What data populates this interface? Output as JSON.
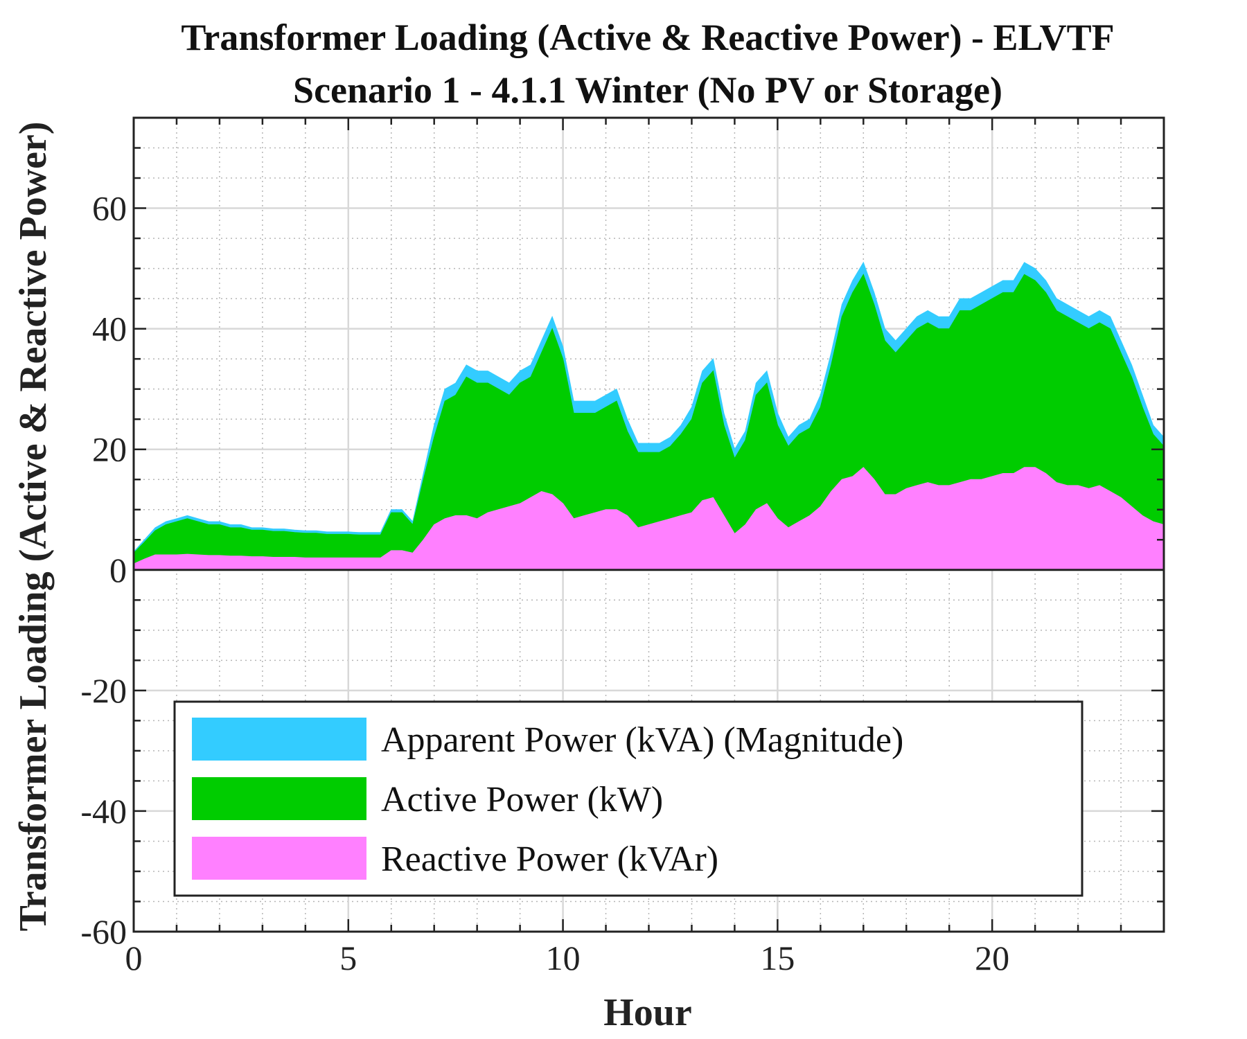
{
  "chart_data": {
    "type": "area",
    "title": "Transformer Loading (Active & Reactive Power) - ELVTF",
    "subtitle": "Scenario 1 - 4.1.1 Winter (No PV or Storage)",
    "xlabel": "Hour",
    "ylabel": "Transformer Loading (Active & Reactive Power)",
    "xlim": [
      0,
      24
    ],
    "ylim": [
      -60,
      75
    ],
    "xticks": [
      0,
      5,
      10,
      15,
      20
    ],
    "yticks": [
      -60,
      -40,
      -20,
      0,
      20,
      40,
      60
    ],
    "grid": true,
    "legend_position": "bottom-center",
    "x": [
      0,
      0.25,
      0.5,
      0.75,
      1,
      1.25,
      1.5,
      1.75,
      2,
      2.25,
      2.5,
      2.75,
      3,
      3.25,
      3.5,
      3.75,
      4,
      4.25,
      4.5,
      4.75,
      5,
      5.25,
      5.5,
      5.75,
      6,
      6.25,
      6.5,
      6.75,
      7,
      7.25,
      7.5,
      7.75,
      8,
      8.25,
      8.5,
      8.75,
      9,
      9.25,
      9.5,
      9.75,
      10,
      10.25,
      10.5,
      10.75,
      11,
      11.25,
      11.5,
      11.75,
      12,
      12.25,
      12.5,
      12.75,
      13,
      13.25,
      13.5,
      13.75,
      14,
      14.25,
      14.5,
      14.75,
      15,
      15.25,
      15.5,
      15.75,
      16,
      16.25,
      16.5,
      16.75,
      17,
      17.25,
      17.5,
      17.75,
      18,
      18.25,
      18.5,
      18.75,
      19,
      19.25,
      19.5,
      19.75,
      20,
      20.25,
      20.5,
      20.75,
      21,
      21.25,
      21.5,
      21.75,
      22,
      22.25,
      22.5,
      22.75,
      23,
      23.25,
      23.5,
      23.75,
      24
    ],
    "series": [
      {
        "name": "Apparent Power (kVA) (Magnitude)",
        "color": "#33ccff",
        "values": [
          3,
          5,
          7,
          8,
          8.5,
          9,
          8.5,
          8,
          8,
          7.5,
          7.5,
          7,
          7,
          6.8,
          6.8,
          6.6,
          6.5,
          6.5,
          6.3,
          6.3,
          6.3,
          6.2,
          6.2,
          6.2,
          10,
          10,
          8,
          16,
          24,
          30,
          31,
          34,
          33,
          33,
          32,
          31,
          33,
          34,
          38,
          42,
          37,
          28,
          28,
          28,
          29,
          30,
          25,
          21,
          21,
          21,
          22,
          24,
          27,
          33,
          35,
          26,
          20,
          23,
          31,
          33,
          26,
          22,
          24,
          25,
          29,
          36,
          44,
          48,
          51,
          46,
          40,
          38,
          40,
          42,
          43,
          42,
          42,
          45,
          45,
          46,
          47,
          48,
          48,
          51,
          50,
          48,
          45,
          44,
          43,
          42,
          43,
          42,
          38,
          34,
          29,
          24,
          22
        ]
      },
      {
        "name": "Active Power (kW)",
        "color": "#00cc00",
        "values": [
          2.8,
          4.6,
          6.5,
          7.5,
          8,
          8.5,
          8,
          7.5,
          7.5,
          7,
          7,
          6.6,
          6.6,
          6.4,
          6.4,
          6.2,
          6.1,
          6.1,
          5.9,
          5.9,
          5.9,
          5.8,
          5.8,
          5.8,
          9.5,
          9.5,
          7.5,
          15,
          22,
          28,
          29,
          32,
          31,
          31,
          30,
          29,
          31,
          32,
          36,
          40,
          35,
          26,
          26,
          26,
          27,
          28,
          23,
          19.5,
          19.5,
          19.5,
          20.5,
          22.5,
          25,
          31,
          33,
          24,
          18.5,
          21.5,
          29,
          31,
          24,
          20.5,
          22.5,
          23.5,
          27,
          34,
          42,
          46,
          49,
          44,
          38,
          36,
          38,
          40,
          41,
          40,
          40,
          43,
          43,
          44,
          45,
          46,
          46,
          49,
          48,
          46,
          43,
          42,
          41,
          40,
          41,
          40,
          36,
          32,
          27,
          22.5,
          20.5
        ]
      },
      {
        "name": "Reactive Power (kVAr)",
        "color": "#ff80ff",
        "values": [
          1,
          1.8,
          2.5,
          2.5,
          2.5,
          2.6,
          2.5,
          2.4,
          2.4,
          2.3,
          2.3,
          2.2,
          2.2,
          2.1,
          2.1,
          2.1,
          2,
          2,
          2,
          2,
          2,
          2,
          2,
          2,
          3.2,
          3.2,
          2.8,
          5,
          7.5,
          8.5,
          9,
          9,
          8.5,
          9.5,
          10,
          10.5,
          11,
          12,
          13,
          12.5,
          11,
          8.5,
          9,
          9.5,
          10,
          10,
          9,
          7,
          7.5,
          8,
          8.5,
          9,
          9.5,
          11.5,
          12,
          9,
          6,
          7.5,
          10,
          11,
          8.5,
          7,
          8,
          9,
          10.5,
          13,
          15,
          15.5,
          17,
          15,
          12.5,
          12.5,
          13.5,
          14,
          14.5,
          14,
          14,
          14.5,
          15,
          15,
          15.5,
          16,
          16,
          17,
          17,
          16,
          14.5,
          14,
          14,
          13.5,
          14,
          13,
          12,
          10.5,
          9,
          8,
          7.5
        ]
      }
    ]
  }
}
